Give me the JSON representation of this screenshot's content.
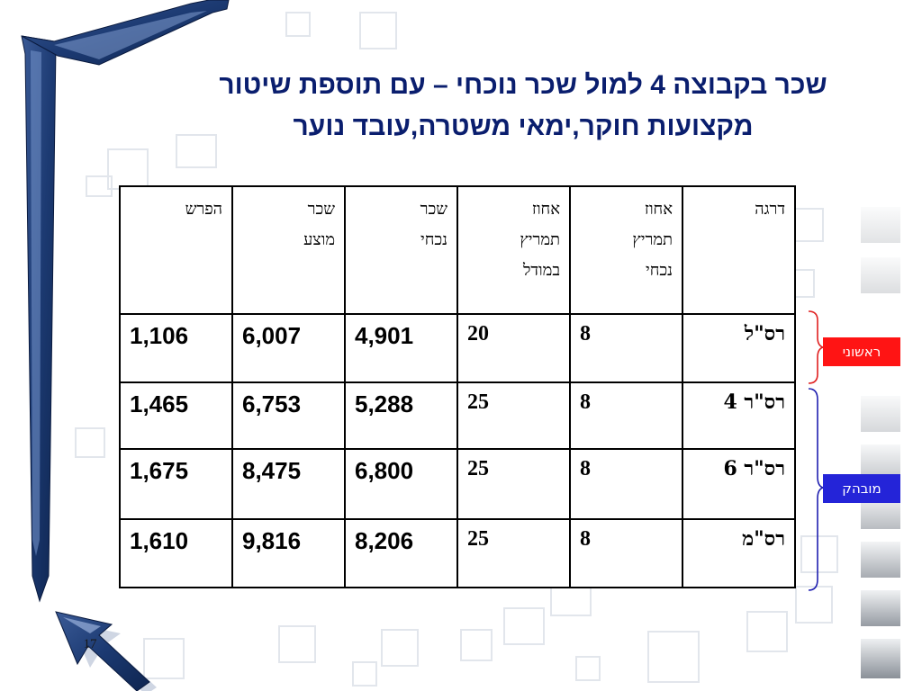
{
  "slide": {
    "title_line1": "שכר בקבוצה 4 למול שכר נוכחי – עם תוספת שיטור",
    "title_line2": "מקצועות חוקר,ימאי משטרה,עובד נוער",
    "slide_number": "17"
  },
  "table": {
    "headers": {
      "rank": [
        "דרגה"
      ],
      "current_pct": [
        "אחוז",
        "תמריץ",
        "נכחי"
      ],
      "model_pct": [
        "אחוז",
        "תמריץ",
        "במודל"
      ],
      "current_salary": [
        "שכר",
        "נכחי"
      ],
      "proposed_salary": [
        "שכר",
        "מוצע"
      ],
      "difference": [
        "הפרש"
      ]
    },
    "rows": [
      {
        "rank": "רס\"ל",
        "current_pct": "8",
        "model_pct": "20",
        "current_salary": "4,901",
        "proposed_salary": "6,007",
        "difference": "1,106"
      },
      {
        "rank": "רס\"ר 4",
        "current_pct": "8",
        "model_pct": "25",
        "current_salary": "5,288",
        "proposed_salary": "6,753",
        "difference": "1,465"
      },
      {
        "rank": "רס\"ר 6",
        "current_pct": "8",
        "model_pct": "25",
        "current_salary": "6,800",
        "proposed_salary": "8,475",
        "difference": "1,675"
      },
      {
        "rank": "רס\"מ",
        "current_pct": "8",
        "model_pct": "25",
        "current_salary": "8,206",
        "proposed_salary": "9,816",
        "difference": "1,610"
      }
    ]
  },
  "tags": {
    "first": "ראשוני",
    "senior": "מובהק"
  },
  "colors": {
    "title": "#0a1e6e",
    "tag_first": "#ff1414",
    "tag_senior": "#2424d8",
    "first_brace": "#e02020",
    "senior_brace": "#2020b0"
  }
}
